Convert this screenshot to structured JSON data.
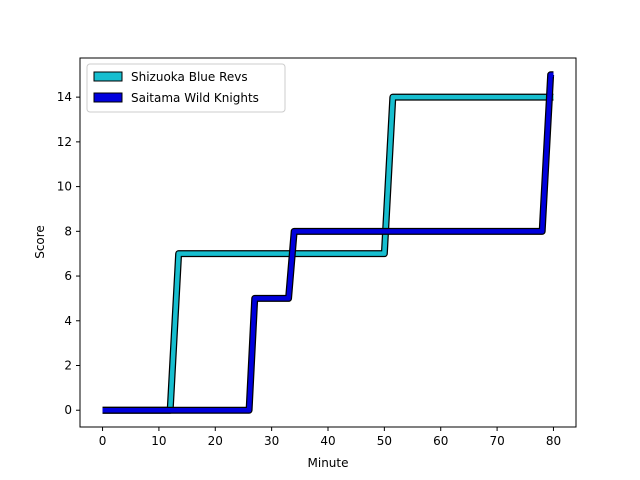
{
  "chart_data": {
    "type": "line",
    "xlabel": "Minute",
    "ylabel": "Score",
    "xlim": [
      -4,
      84
    ],
    "ylim": [
      -0.75,
      15.75
    ],
    "xticks": [
      0,
      10,
      20,
      30,
      40,
      50,
      60,
      70,
      80
    ],
    "yticks": [
      0,
      2,
      4,
      6,
      8,
      10,
      12,
      14
    ],
    "grid": false,
    "legend_position": "top-left",
    "series": [
      {
        "name": "Shizuoka Blue Revs",
        "color": "#17becf",
        "points": [
          [
            0,
            0
          ],
          [
            12,
            0
          ],
          [
            13.5,
            7
          ],
          [
            50,
            7
          ],
          [
            51.5,
            14
          ],
          [
            80,
            14
          ]
        ]
      },
      {
        "name": "Saitama Wild Knights",
        "color": "#0000dd",
        "points": [
          [
            0,
            0
          ],
          [
            26,
            0
          ],
          [
            27,
            5
          ],
          [
            33,
            5
          ],
          [
            34,
            8
          ],
          [
            78,
            8
          ],
          [
            79.5,
            15
          ],
          [
            80,
            15
          ]
        ]
      }
    ]
  }
}
